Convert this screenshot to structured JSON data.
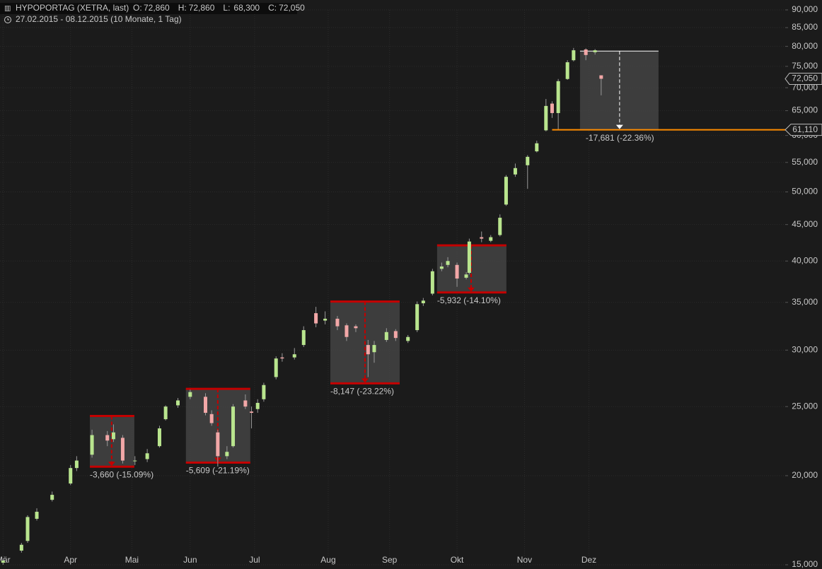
{
  "chart_data": {
    "type": "candlestick",
    "header": {
      "symbol": "HYPOPORTAG (XETRA, last)",
      "quote": [
        {
          "key": "O:",
          "value": "72,860"
        },
        {
          "key": "H:",
          "value": "72,860"
        },
        {
          "key": "L:",
          "value": "68,300"
        },
        {
          "key": "C:",
          "value": "72,050"
        }
      ],
      "range": "27.02.2015 - 08.12.2015 (10 Monate, 1 Tag)"
    },
    "x": [
      0,
      6,
      8,
      11,
      16,
      22,
      24,
      29,
      34,
      36,
      39,
      43,
      47,
      51,
      53,
      57,
      61,
      66,
      68,
      70,
      73,
      75,
      79,
      81,
      83,
      85,
      89,
      91,
      95,
      98,
      102,
      105,
      109,
      112,
      115,
      119,
      121,
      125,
      128,
      132,
      135,
      137,
      140,
      143,
      145,
      148,
      151,
      152,
      156,
      159,
      162,
      164,
      167,
      171,
      174,
      177,
      179,
      181,
      184,
      186,
      190,
      193,
      195
    ],
    "series": {
      "open": [
        15100,
        15700,
        16200,
        17400,
        18500,
        19500,
        20500,
        21400,
        22800,
        22500,
        22600,
        21000,
        21100,
        22000,
        24000,
        25100,
        25800,
        25800,
        24400,
        23000,
        21300,
        22000,
        25500,
        24600,
        24800,
        25600,
        27500,
        29300,
        29300,
        30500,
        33800,
        33000,
        33200,
        32500,
        32400,
        30500,
        29800,
        31000,
        31900,
        30900,
        32000,
        34900,
        36000,
        39000,
        39500,
        39500,
        37900,
        38500,
        43200,
        42700,
        43500,
        48000,
        52900,
        54500,
        57000,
        61000,
        66500,
        64500,
        72000,
        76500,
        79200,
        78500,
        72860
      ],
      "high": [
        15300,
        16100,
        17600,
        18000,
        19000,
        20700,
        21300,
        23200,
        23100,
        23600,
        22800,
        21300,
        21800,
        23500,
        25100,
        25700,
        26400,
        26100,
        24700,
        23200,
        22000,
        25200,
        26000,
        25000,
        25600,
        27000,
        29400,
        29700,
        30200,
        32400,
        34500,
        34000,
        33500,
        32700,
        32600,
        31000,
        30900,
        32200,
        32100,
        31500,
        35100,
        35500,
        39000,
        39800,
        40500,
        39800,
        38600,
        43000,
        44000,
        43500,
        46500,
        52800,
        54800,
        56300,
        59000,
        67500,
        67000,
        72000,
        76500,
        79600,
        79500,
        79300,
        72860
      ],
      "low": [
        15000,
        15600,
        16100,
        17300,
        18400,
        19400,
        20300,
        21200,
        22000,
        22300,
        20800,
        20700,
        20900,
        21900,
        23900,
        24900,
        25600,
        24300,
        23500,
        20600,
        21100,
        21900,
        24800,
        23300,
        24500,
        25400,
        27300,
        28900,
        29100,
        30300,
        32300,
        32600,
        32000,
        30900,
        31800,
        27500,
        28800,
        30800,
        30900,
        30700,
        31800,
        34600,
        35800,
        38700,
        39200,
        36800,
        37700,
        38300,
        42500,
        42500,
        43300,
        47800,
        52500,
        50500,
        56800,
        60800,
        63500,
        61100,
        71800,
        76200,
        76500,
        77900,
        68300
      ],
      "close": [
        15200,
        16000,
        17500,
        17800,
        18800,
        20500,
        21000,
        22800,
        22400,
        23000,
        21000,
        21000,
        21500,
        23300,
        25000,
        25500,
        26200,
        24500,
        23700,
        21300,
        21600,
        25000,
        25000,
        24500,
        25300,
        26800,
        29200,
        29200,
        29600,
        32000,
        32700,
        33200,
        32400,
        31300,
        32200,
        29600,
        30500,
        31800,
        31200,
        31300,
        34800,
        35200,
        38700,
        39300,
        40000,
        37800,
        38300,
        42600,
        43000,
        43200,
        46000,
        52500,
        54000,
        56000,
        58500,
        66000,
        64500,
        71500,
        76000,
        79000,
        77800,
        79000,
        72050
      ]
    },
    "up_color": "#b9e58e",
    "down_color": "#f2a7a7",
    "xlim": [
      -1,
      255
    ],
    "xticks": [
      {
        "value": 0,
        "label": "Mär"
      },
      {
        "value": 22,
        "label": "Apr"
      },
      {
        "value": 42,
        "label": "Mai"
      },
      {
        "value": 61,
        "label": "Jun"
      },
      {
        "value": 82,
        "label": "Jul"
      },
      {
        "value": 106,
        "label": "Aug"
      },
      {
        "value": 126,
        "label": "Sep"
      },
      {
        "value": 148,
        "label": "Okt"
      },
      {
        "value": 170,
        "label": "Nov"
      },
      {
        "value": 191,
        "label": "Dez"
      }
    ],
    "ylim": [
      15000,
      90000
    ],
    "log_scale": true,
    "yticks": [
      {
        "value": 15000,
        "label": "15,000"
      },
      {
        "value": 20000,
        "label": "20,000"
      },
      {
        "value": 25000,
        "label": "25,000"
      },
      {
        "value": 30000,
        "label": "30,000"
      },
      {
        "value": 35000,
        "label": "35,000"
      },
      {
        "value": 40000,
        "label": "40,000"
      },
      {
        "value": 45000,
        "label": "45,000"
      },
      {
        "value": 50000,
        "label": "50,000"
      },
      {
        "value": 55000,
        "label": "55,000"
      },
      {
        "value": 60000,
        "label": "60,000"
      },
      {
        "value": 65000,
        "label": "65,000"
      },
      {
        "value": 70000,
        "label": "70,000"
      },
      {
        "value": 75000,
        "label": "75,000"
      },
      {
        "value": 80000,
        "label": "80,000"
      },
      {
        "value": 85000,
        "label": "85,000"
      },
      {
        "value": 90000,
        "label": "90,000"
      }
    ],
    "grid": true,
    "drawdowns": [
      {
        "label": "-3,660 (-15.09%)",
        "high": 24250,
        "low": 20590,
        "x0": 28.3,
        "x1": 42.8,
        "mid": 35.4,
        "color": "#c40000"
      },
      {
        "label": "-5,609 (-21.19%)",
        "high": 26470,
        "low": 20861,
        "x0": 59.6,
        "x1": 80.6,
        "mid": 70,
        "color": "#c40000"
      },
      {
        "label": "-8,147 (-23.22%)",
        "high": 35090,
        "low": 26943,
        "x0": 106.7,
        "x1": 129.3,
        "mid": 118,
        "color": "#c40000"
      },
      {
        "label": "-5,932 (-14.10%)",
        "high": 42070,
        "low": 36138,
        "x0": 141.5,
        "x1": 164.1,
        "mid": 152.6,
        "color": "#c40000"
      },
      {
        "label": "-17,681 (-22.36%)",
        "high": 78791,
        "low": 61110,
        "x0": 188.1,
        "x1": 213.7,
        "mid": 201,
        "color": "#ffffff"
      }
    ],
    "last_price": {
      "value": 72050,
      "label": "72,050"
    },
    "level": {
      "value": 61110,
      "label": "61,110",
      "x0": 179,
      "color": "#ff8c00"
    }
  }
}
